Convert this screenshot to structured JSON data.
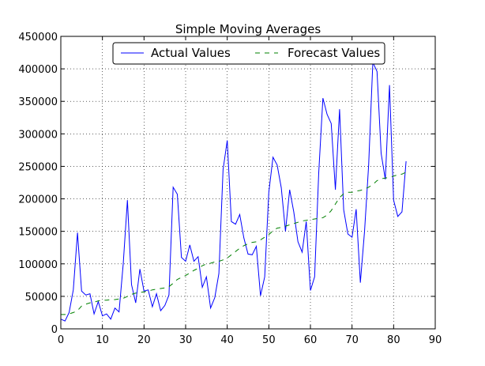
{
  "chart_data": {
    "type": "line",
    "title": "Simple Moving Averages",
    "xlabel": "",
    "ylabel": "",
    "xlim": [
      0,
      90
    ],
    "ylim": [
      0,
      450000
    ],
    "xticks": [
      0,
      10,
      20,
      30,
      40,
      50,
      60,
      70,
      80,
      90
    ],
    "yticks": [
      0,
      50000,
      100000,
      150000,
      200000,
      250000,
      300000,
      350000,
      400000,
      450000
    ],
    "grid": true,
    "legend_position": "top-center",
    "x": [
      0,
      1,
      2,
      3,
      4,
      5,
      6,
      7,
      8,
      9,
      10,
      11,
      12,
      13,
      14,
      15,
      16,
      17,
      18,
      19,
      20,
      21,
      22,
      23,
      24,
      25,
      26,
      27,
      28,
      29,
      30,
      31,
      32,
      33,
      34,
      35,
      36,
      37,
      38,
      39,
      40,
      41,
      42,
      43,
      44,
      45,
      46,
      47,
      48,
      49,
      50,
      51,
      52,
      53,
      54,
      55,
      56,
      57,
      58,
      59,
      60,
      61,
      62,
      63,
      64,
      65,
      66,
      67,
      68,
      69,
      70,
      71,
      72,
      73,
      74,
      75,
      76,
      77,
      78,
      79,
      80,
      81,
      82,
      83
    ],
    "series": [
      {
        "name": "Actual Values",
        "color": "#0000ff",
        "style": "solid",
        "values": [
          15000,
          12000,
          25000,
          60000,
          148000,
          58000,
          52000,
          54000,
          23000,
          42000,
          20000,
          23000,
          15000,
          32000,
          26000,
          100000,
          198000,
          68000,
          40000,
          92000,
          58000,
          60000,
          34000,
          54000,
          28000,
          36000,
          52000,
          218000,
          207000,
          110000,
          104000,
          129000,
          104000,
          111000,
          64000,
          80000,
          32000,
          48000,
          85000,
          245000,
          290000,
          165000,
          161000,
          176000,
          140000,
          115000,
          114000,
          127000,
          51000,
          80000,
          210000,
          264000,
          252000,
          217000,
          150000,
          214000,
          180000,
          134000,
          118000,
          165000,
          59000,
          80000,
          240000,
          355000,
          330000,
          316000,
          214000,
          338000,
          183000,
          146000,
          141000,
          184000,
          71000,
          150000,
          252000,
          410000,
          396000,
          270000,
          230000,
          375000,
          198000,
          173000,
          180000,
          258000
        ]
      },
      {
        "name": "Forecast Values",
        "color": "#008000",
        "style": "dashed",
        "values": [
          22000,
          22000,
          23000,
          25000,
          28000,
          35000,
          38000,
          40000,
          41000,
          43000,
          44000,
          44000,
          45000,
          45000,
          46000,
          47000,
          50000,
          53000,
          55000,
          56000,
          57000,
          58000,
          60000,
          61000,
          62000,
          63000,
          65000,
          70000,
          76000,
          79000,
          82000,
          86000,
          90000,
          93000,
          97000,
          100000,
          101000,
          103000,
          104000,
          106000,
          109000,
          114000,
          119000,
          124000,
          128000,
          131000,
          133000,
          134000,
          137000,
          141000,
          145000,
          151000,
          155000,
          156000,
          158000,
          160000,
          162000,
          164000,
          166000,
          167000,
          168000,
          169000,
          170000,
          171000,
          175000,
          182000,
          192000,
          202000,
          208000,
          210000,
          210000,
          212000,
          213000,
          215000,
          218000,
          222000,
          228000,
          231000,
          232000,
          233000,
          235000,
          237000,
          238000,
          241000
        ]
      }
    ]
  }
}
